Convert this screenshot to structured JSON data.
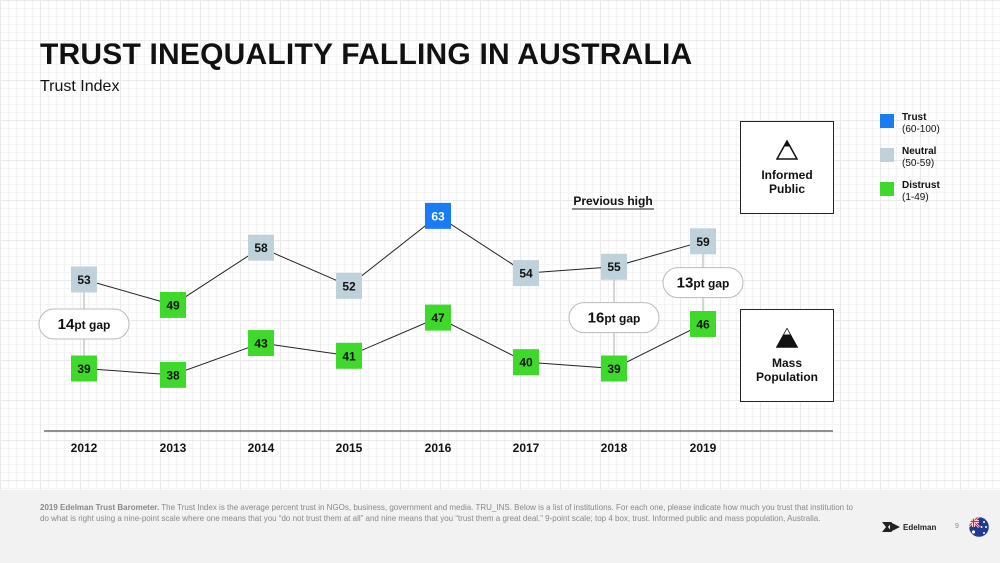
{
  "header": {
    "title": "TRUST INEQUALITY FALLING IN AUSTRALIA",
    "subtitle": "Trust Index"
  },
  "colors": {
    "trust": "#1a7cf5",
    "neutral": "#bfd1db",
    "distrust": "#3ed92b"
  },
  "legend": [
    {
      "name": "Trust",
      "range": "(60-100)",
      "color": "#1a7cf5"
    },
    {
      "name": "Neutral",
      "range": "(50-59)",
      "color": "#bfd1db"
    },
    {
      "name": "Distrust",
      "range": "(1-49)",
      "color": "#3ed92b"
    }
  ],
  "segments": {
    "informed": {
      "label_line1": "Informed",
      "label_line2": "Public",
      "icon": "triangle-outline-icon"
    },
    "mass": {
      "label_line1": "Mass",
      "label_line2": "Population",
      "icon": "triangle-filled-icon"
    }
  },
  "chart_data": {
    "type": "line",
    "title": "TRUST INEQUALITY FALLING IN AUSTRALIA",
    "subtitle": "Trust Index",
    "x": [
      "2012",
      "2013",
      "2014",
      "2015",
      "2016",
      "2017",
      "2018",
      "2019"
    ],
    "series": [
      {
        "name": "Informed Public",
        "values": [
          53,
          49,
          58,
          52,
          63,
          54,
          55,
          59
        ]
      },
      {
        "name": "Mass Population",
        "values": [
          39,
          38,
          43,
          41,
          47,
          40,
          39,
          46
        ]
      }
    ],
    "annotations": [
      {
        "text": "Previous high",
        "year": "2018"
      }
    ],
    "gaps": [
      {
        "year": "2012",
        "big": "14",
        "small": "pt gap"
      },
      {
        "year": "2018",
        "big": "16",
        "small": "pt gap"
      },
      {
        "year": "2019",
        "big": "13",
        "small": "pt gap"
      }
    ]
  },
  "footer": {
    "source_bold": "2019 Edelman Trust Barometer.",
    "source_text": " The Trust Index is the average percent trust in NGOs, business, government and media. TRU_INS. Below is a list of institutions. For each one, please indicate how much you trust that institution to do what is right using a nine-point scale where one means that you “do not trust them at all” and nine means that you “trust them a great deal.” 9-point scale; top 4 box, trust. Informed public and mass population, Australia.",
    "brand": "Edelman",
    "page_number": "9"
  }
}
